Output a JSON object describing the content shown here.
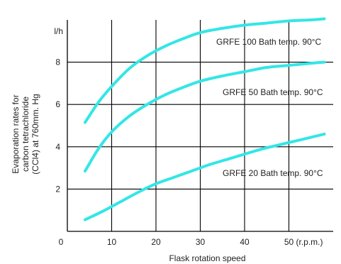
{
  "chart_data": {
    "type": "line",
    "title": "",
    "xlabel": "Flask rotation speed",
    "ylabel_lines": [
      "Evaporation rates for",
      "carbon tetrachloride",
      "(CCl4) at 760mm. Hg"
    ],
    "y_unit": "l/h",
    "x_unit": "(r.p.m.)",
    "xlim": [
      0,
      60
    ],
    "ylim": [
      0,
      10
    ],
    "x_ticks": [
      {
        "value": 10,
        "label": "10"
      },
      {
        "value": 20,
        "label": "20"
      },
      {
        "value": 30,
        "label": "30"
      },
      {
        "value": 40,
        "label": "40"
      },
      {
        "value": 50,
        "label": "50"
      }
    ],
    "y_ticks": [
      {
        "value": 2,
        "label": "2"
      },
      {
        "value": 4,
        "label": "4"
      },
      {
        "value": 6,
        "label": "6"
      },
      {
        "value": 8,
        "label": "8"
      }
    ],
    "origin_label": "0",
    "grid": true,
    "line_color": "#33e6e6",
    "series": [
      {
        "name": "GRFE 100 Bath temp. 90°C",
        "x": [
          4,
          7,
          10,
          14,
          18,
          22,
          26,
          30,
          35,
          40,
          45,
          50,
          55,
          58
        ],
        "y": [
          5.15,
          6.1,
          6.85,
          7.7,
          8.3,
          8.75,
          9.1,
          9.4,
          9.6,
          9.75,
          9.85,
          9.95,
          10.0,
          10.05
        ]
      },
      {
        "name": "GRFE 50 Bath temp. 90°C",
        "x": [
          4,
          7,
          10,
          14,
          18,
          22,
          26,
          30,
          35,
          40,
          45,
          50,
          55,
          58
        ],
        "y": [
          2.85,
          3.9,
          4.7,
          5.45,
          6.0,
          6.45,
          6.8,
          7.1,
          7.35,
          7.55,
          7.75,
          7.85,
          7.95,
          8.0
        ]
      },
      {
        "name": "GRFE 20 Bath temp. 90°C",
        "x": [
          4,
          8,
          12,
          16,
          20,
          24,
          28,
          32,
          36,
          40,
          44,
          48,
          52,
          56,
          58
        ],
        "y": [
          0.55,
          0.95,
          1.4,
          1.85,
          2.25,
          2.55,
          2.85,
          3.15,
          3.4,
          3.65,
          3.9,
          4.1,
          4.3,
          4.5,
          4.6
        ]
      }
    ]
  }
}
